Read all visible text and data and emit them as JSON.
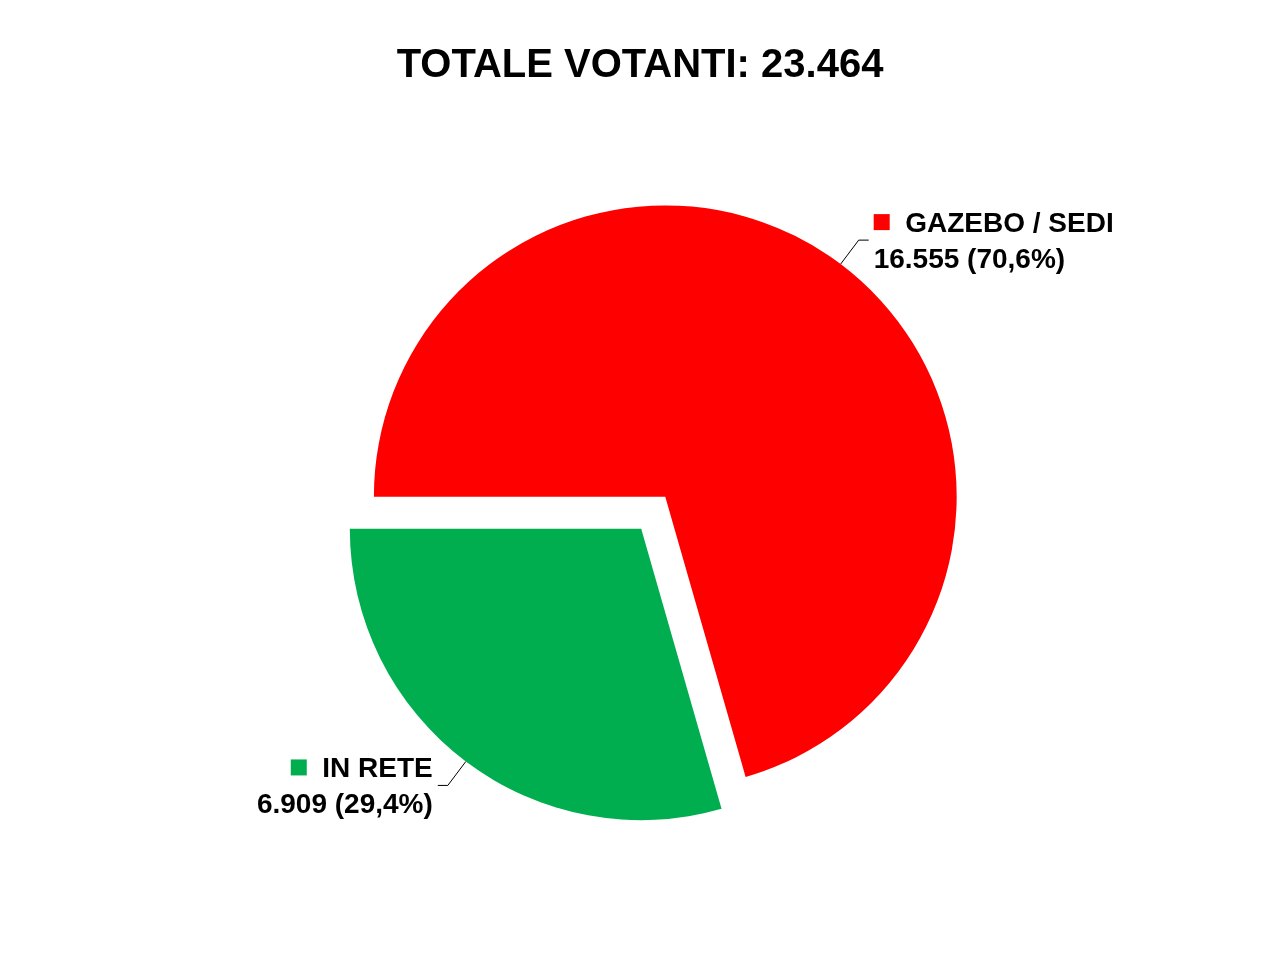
{
  "chart_data": {
    "type": "pie",
    "title": "TOTALE VOTANTI: 23.464",
    "categories": [
      "GAZEBO / SEDI",
      "IN RETE"
    ],
    "values": [
      16555,
      6909
    ],
    "colors": [
      "#ff0000",
      "#00ae4f"
    ],
    "value_labels": [
      "16.555 (70,6%)",
      "6.909 (29,4%)"
    ],
    "legend": "top right"
  }
}
